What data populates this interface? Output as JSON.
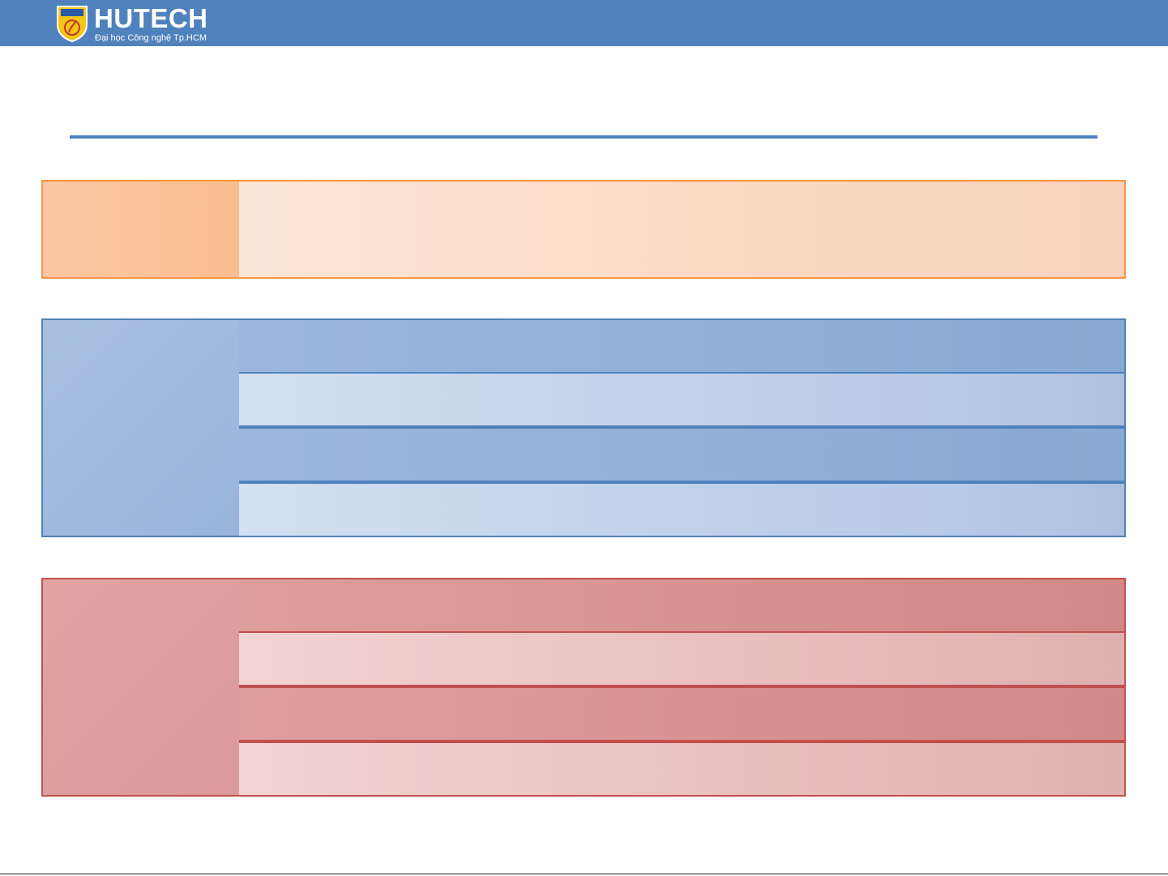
{
  "header": {
    "logo_name": "HUTECH",
    "logo_subtitle": "Đại học Công nghệ Tp.HCM",
    "brand_color": "#4f81bd"
  },
  "title_rule_color": "#4f81bd",
  "tables": [
    {
      "name": "orange",
      "accent": "#f79646",
      "left_label": "",
      "rows": [
        ""
      ]
    },
    {
      "name": "blue",
      "accent": "#4f81bd",
      "left_label": "",
      "rows": [
        "",
        "",
        "",
        ""
      ]
    },
    {
      "name": "red",
      "accent": "#c0504d",
      "left_label": "",
      "rows": [
        "",
        "",
        "",
        ""
      ]
    }
  ]
}
